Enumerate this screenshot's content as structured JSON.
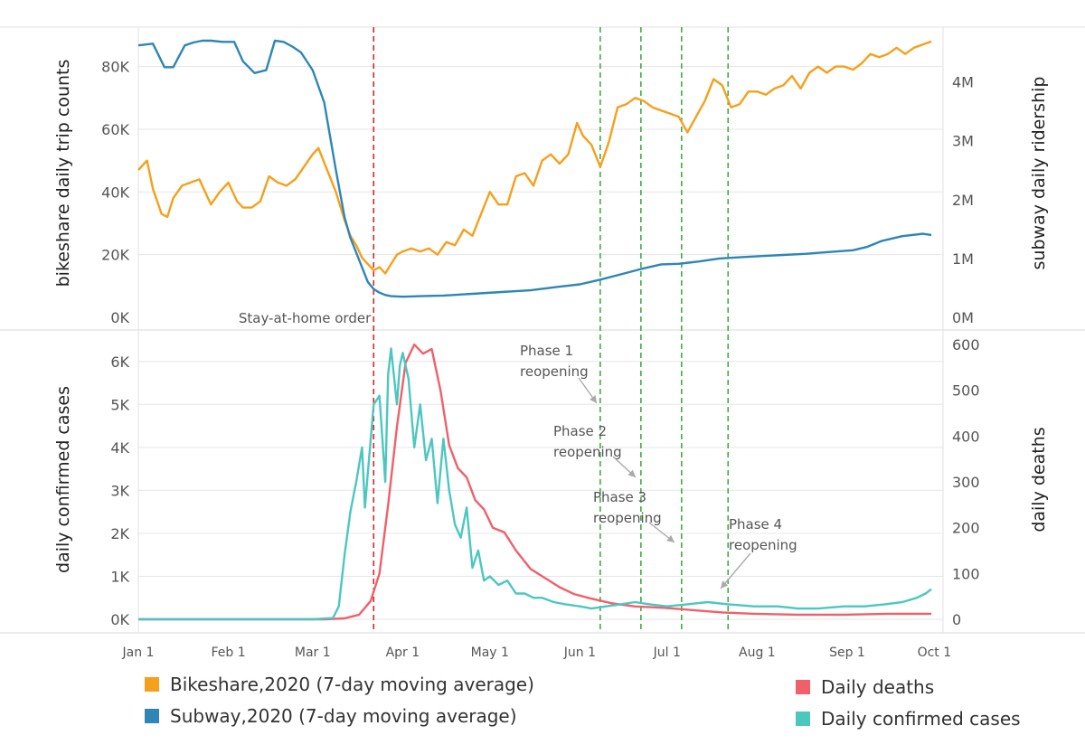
{
  "chart_data": [
    {
      "type": "line",
      "panel": "top",
      "ylabel_left": "bikeshare daily trip counts",
      "ylabel_right": "subway daily ridership",
      "y_left_ticks": [
        "0K",
        "20K",
        "40K",
        "60K",
        "80K"
      ],
      "y_left_tick_values": [
        0,
        20000,
        40000,
        60000,
        80000
      ],
      "y_left_lim": [
        0,
        92000
      ],
      "y_right_ticks": [
        "0M",
        "1M",
        "2M",
        "3M",
        "4M"
      ],
      "y_right_tick_values": [
        0,
        1000000,
        2000000,
        3000000,
        4000000
      ],
      "y_right_lim": [
        0,
        4900000
      ],
      "series": [
        {
          "name": "Bikeshare,2020 (7-day moving average)",
          "axis": "left",
          "color": "#F5A01C",
          "x": [
            "2020-01-01",
            "2020-01-04",
            "2020-01-06",
            "2020-01-09",
            "2020-01-11",
            "2020-01-13",
            "2020-01-16",
            "2020-01-19",
            "2020-01-22",
            "2020-01-26",
            "2020-01-29",
            "2020-02-01",
            "2020-02-04",
            "2020-02-06",
            "2020-02-09",
            "2020-02-12",
            "2020-02-15",
            "2020-02-18",
            "2020-02-21",
            "2020-02-24",
            "2020-02-27",
            "2020-03-01",
            "2020-03-03",
            "2020-03-06",
            "2020-03-09",
            "2020-03-12",
            "2020-03-14",
            "2020-03-16",
            "2020-03-18",
            "2020-03-20",
            "2020-03-22",
            "2020-03-24",
            "2020-03-26",
            "2020-03-28",
            "2020-03-30",
            "2020-04-01",
            "2020-04-04",
            "2020-04-07",
            "2020-04-10",
            "2020-04-13",
            "2020-04-16",
            "2020-04-19",
            "2020-04-22",
            "2020-04-25",
            "2020-04-28",
            "2020-05-01",
            "2020-05-04",
            "2020-05-07",
            "2020-05-10",
            "2020-05-13",
            "2020-05-16",
            "2020-05-19",
            "2020-05-22",
            "2020-05-25",
            "2020-05-28",
            "2020-05-31",
            "2020-06-02",
            "2020-06-05",
            "2020-06-08",
            "2020-06-11",
            "2020-06-14",
            "2020-06-17",
            "2020-06-20",
            "2020-06-23",
            "2020-06-26",
            "2020-06-29",
            "2020-07-02",
            "2020-07-05",
            "2020-07-08",
            "2020-07-11",
            "2020-07-14",
            "2020-07-17",
            "2020-07-20",
            "2020-07-23",
            "2020-07-26",
            "2020-07-29",
            "2020-08-01",
            "2020-08-04",
            "2020-08-07",
            "2020-08-10",
            "2020-08-13",
            "2020-08-16",
            "2020-08-19",
            "2020-08-22",
            "2020-08-25",
            "2020-08-28",
            "2020-08-31",
            "2020-09-03",
            "2020-09-06",
            "2020-09-09",
            "2020-09-12",
            "2020-09-15",
            "2020-09-18",
            "2020-09-21",
            "2020-09-24",
            "2020-09-27",
            "2020-09-30"
          ],
          "values": [
            47000,
            50000,
            41000,
            33000,
            32000,
            38000,
            42000,
            43000,
            44000,
            36000,
            40000,
            43000,
            37000,
            35000,
            35000,
            37000,
            45000,
            43000,
            42000,
            44000,
            48000,
            52000,
            54000,
            47000,
            40000,
            31000,
            26000,
            23000,
            19000,
            17000,
            15000,
            16000,
            14000,
            17000,
            20000,
            21000,
            22000,
            21000,
            22000,
            20000,
            24000,
            23000,
            28000,
            26000,
            33000,
            40000,
            36000,
            36000,
            45000,
            46000,
            42000,
            50000,
            52000,
            49000,
            52000,
            62000,
            58000,
            55000,
            48000,
            56000,
            67000,
            68000,
            70000,
            69000,
            67000,
            66000,
            65000,
            64000,
            59000,
            64000,
            69000,
            76000,
            74000,
            67000,
            68000,
            72000,
            72000,
            71000,
            73000,
            74000,
            77000,
            73000,
            78000,
            80000,
            78000,
            80000,
            80000,
            79000,
            81000,
            84000,
            83000,
            84000,
            86000,
            84000,
            86000,
            87000,
            88000
          ]
        },
        {
          "name": "Subway,2020 (7-day moving average)",
          "axis": "right",
          "color": "#2E86B6",
          "x": [
            "2020-01-01",
            "2020-01-06",
            "2020-01-10",
            "2020-01-13",
            "2020-01-17",
            "2020-01-20",
            "2020-01-23",
            "2020-01-26",
            "2020-01-30",
            "2020-02-03",
            "2020-02-06",
            "2020-02-10",
            "2020-02-14",
            "2020-02-17",
            "2020-02-20",
            "2020-02-23",
            "2020-02-26",
            "2020-03-01",
            "2020-03-05",
            "2020-03-09",
            "2020-03-12",
            "2020-03-14",
            "2020-03-16",
            "2020-03-18",
            "2020-03-20",
            "2020-03-22",
            "2020-03-24",
            "2020-03-26",
            "2020-03-28",
            "2020-04-01",
            "2020-04-07",
            "2020-04-15",
            "2020-04-25",
            "2020-05-05",
            "2020-05-15",
            "2020-05-25",
            "2020-06-01",
            "2020-06-08",
            "2020-06-15",
            "2020-06-22",
            "2020-06-29",
            "2020-07-05",
            "2020-07-12",
            "2020-07-19",
            "2020-07-26",
            "2020-08-02",
            "2020-08-10",
            "2020-08-18",
            "2020-08-26",
            "2020-09-03",
            "2020-09-08",
            "2020-09-13",
            "2020-09-20",
            "2020-09-27",
            "2020-09-30"
          ],
          "values": [
            4620000,
            4650000,
            4250000,
            4250000,
            4620000,
            4670000,
            4700000,
            4700000,
            4680000,
            4680000,
            4350000,
            4150000,
            4200000,
            4700000,
            4680000,
            4600000,
            4500000,
            4200000,
            3650000,
            2500000,
            1700000,
            1350000,
            1100000,
            850000,
            600000,
            480000,
            420000,
            380000,
            360000,
            350000,
            360000,
            370000,
            400000,
            430000,
            460000,
            520000,
            560000,
            640000,
            730000,
            820000,
            900000,
            910000,
            950000,
            1000000,
            1020000,
            1040000,
            1060000,
            1080000,
            1110000,
            1140000,
            1200000,
            1300000,
            1380000,
            1420000,
            1400000
          ]
        }
      ],
      "annotations": [
        {
          "text": "Stay-at-home order",
          "x": "2020-03-22"
        }
      ]
    },
    {
      "type": "line",
      "panel": "bottom",
      "ylabel_left": "daily confirmed cases",
      "ylabel_right": "daily deaths",
      "y_left_ticks": [
        "0K",
        "1K",
        "2K",
        "3K",
        "4K",
        "5K",
        "6K"
      ],
      "y_left_tick_values": [
        0,
        1000,
        2000,
        3000,
        4000,
        5000,
        6000
      ],
      "y_left_lim": [
        0,
        6500
      ],
      "y_right_ticks": [
        "0",
        "100",
        "200",
        "300",
        "400",
        "500",
        "600"
      ],
      "y_right_tick_values": [
        0,
        100,
        200,
        300,
        400,
        500,
        600
      ],
      "y_right_lim": [
        0,
        610
      ],
      "series": [
        {
          "name": "Daily deaths",
          "axis": "right",
          "color": "#F0606A",
          "x": [
            "2020-01-01",
            "2020-03-05",
            "2020-03-12",
            "2020-03-17",
            "2020-03-21",
            "2020-03-24",
            "2020-03-27",
            "2020-03-30",
            "2020-04-02",
            "2020-04-05",
            "2020-04-08",
            "2020-04-11",
            "2020-04-14",
            "2020-04-17",
            "2020-04-20",
            "2020-04-23",
            "2020-04-26",
            "2020-04-29",
            "2020-05-02",
            "2020-05-06",
            "2020-05-10",
            "2020-05-15",
            "2020-05-20",
            "2020-05-25",
            "2020-05-30",
            "2020-06-05",
            "2020-06-12",
            "2020-06-20",
            "2020-06-30",
            "2020-07-10",
            "2020-07-20",
            "2020-07-31",
            "2020-08-15",
            "2020-08-31",
            "2020-09-15",
            "2020-09-30"
          ],
          "values": [
            0,
            0,
            2,
            10,
            40,
            100,
            250,
            420,
            560,
            600,
            580,
            590,
            500,
            380,
            330,
            310,
            260,
            240,
            200,
            190,
            150,
            110,
            90,
            70,
            55,
            45,
            35,
            28,
            25,
            20,
            15,
            12,
            10,
            10,
            12,
            12
          ]
        },
        {
          "name": "Daily confirmed cases",
          "axis": "left",
          "color": "#4CC7C0",
          "x": [
            "2020-01-01",
            "2020-03-01",
            "2020-03-08",
            "2020-03-10",
            "2020-03-12",
            "2020-03-14",
            "2020-03-16",
            "2020-03-18",
            "2020-03-19",
            "2020-03-20",
            "2020-03-22",
            "2020-03-24",
            "2020-03-26",
            "2020-03-27",
            "2020-03-28",
            "2020-03-30",
            "2020-03-31",
            "2020-04-01",
            "2020-04-03",
            "2020-04-05",
            "2020-04-07",
            "2020-04-09",
            "2020-04-11",
            "2020-04-13",
            "2020-04-15",
            "2020-04-17",
            "2020-04-19",
            "2020-04-21",
            "2020-04-23",
            "2020-04-25",
            "2020-04-27",
            "2020-04-29",
            "2020-05-01",
            "2020-05-04",
            "2020-05-07",
            "2020-05-10",
            "2020-05-13",
            "2020-05-16",
            "2020-05-19",
            "2020-05-23",
            "2020-05-27",
            "2020-06-01",
            "2020-06-05",
            "2020-06-10",
            "2020-06-15",
            "2020-06-20",
            "2020-06-25",
            "2020-07-01",
            "2020-07-08",
            "2020-07-15",
            "2020-07-22",
            "2020-07-31",
            "2020-08-08",
            "2020-08-15",
            "2020-08-22",
            "2020-08-31",
            "2020-09-07",
            "2020-09-14",
            "2020-09-20",
            "2020-09-25",
            "2020-09-28",
            "2020-09-30"
          ],
          "values": [
            0,
            0,
            30,
            300,
            1500,
            2500,
            3200,
            4000,
            2600,
            3400,
            5000,
            5200,
            3200,
            5700,
            6300,
            5000,
            5900,
            6200,
            5600,
            4000,
            5000,
            3700,
            4200,
            2700,
            4200,
            3000,
            2200,
            1900,
            2600,
            1200,
            1600,
            900,
            1000,
            800,
            900,
            600,
            600,
            500,
            500,
            400,
            350,
            300,
            250,
            300,
            350,
            400,
            350,
            300,
            350,
            400,
            350,
            300,
            300,
            250,
            250,
            300,
            300,
            350,
            400,
            500,
            600,
            700
          ]
        }
      ],
      "annotations": [
        {
          "text": "Phase 1\nreopening",
          "x": "2020-06-08"
        },
        {
          "text": "Phase 2\nreopening",
          "x": "2020-06-22"
        },
        {
          "text": "Phase 3\nreopening",
          "x": "2020-07-06"
        },
        {
          "text": "Phase 4\nreopening",
          "x": "2020-07-22"
        }
      ]
    }
  ],
  "x_axis": {
    "ticks": [
      "Jan 1",
      "Feb 1",
      "Mar 1",
      "Apr 1",
      "May 1",
      "Jun 1",
      "Jul 1",
      "Aug 1",
      "Sep 1",
      "Oct 1"
    ],
    "tick_dates": [
      "2020-01-01",
      "2020-02-01",
      "2020-03-01",
      "2020-04-01",
      "2020-05-01",
      "2020-06-01",
      "2020-07-01",
      "2020-08-01",
      "2020-09-01",
      "2020-10-01"
    ]
  },
  "vertical_lines": [
    {
      "date": "2020-03-22",
      "color": "#D62728",
      "label": "Stay-at-home order"
    },
    {
      "date": "2020-06-08",
      "color": "#3DAF3D",
      "label": "Phase 1 reopening"
    },
    {
      "date": "2020-06-22",
      "color": "#3DAF3D",
      "label": "Phase 2 reopening"
    },
    {
      "date": "2020-07-06",
      "color": "#3DAF3D",
      "label": "Phase 3 reopening"
    },
    {
      "date": "2020-07-22",
      "color": "#3DAF3D",
      "label": "Phase 4 reopening"
    }
  ],
  "legend": [
    {
      "label": "Bikeshare,2020 (7-day moving average)",
      "color": "#F5A01C"
    },
    {
      "label": "Subway,2020 (7-day moving average)",
      "color": "#2E86B6"
    },
    {
      "label": "Daily deaths",
      "color": "#F0606A"
    },
    {
      "label": "Daily confirmed cases",
      "color": "#4CC7C0"
    }
  ]
}
